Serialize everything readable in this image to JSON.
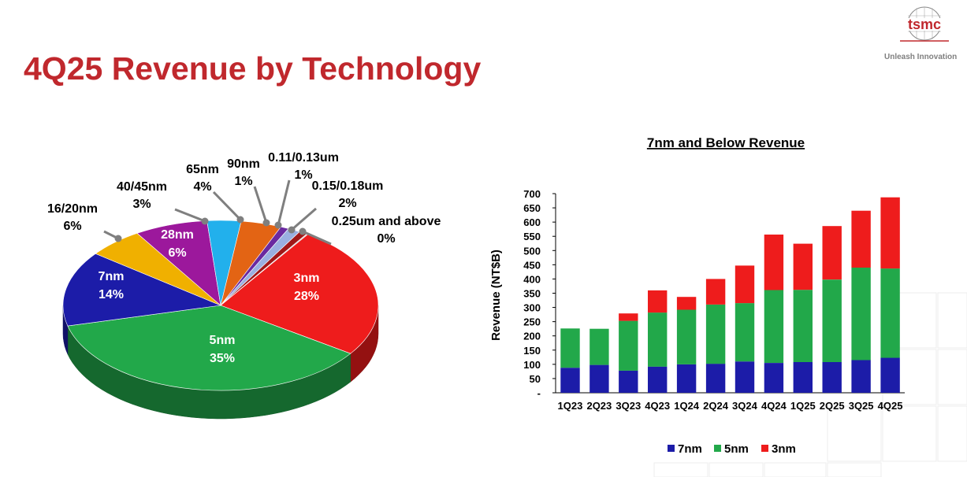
{
  "page": {
    "title": "4Q25 Revenue by Technology",
    "logo_text": "tsmc",
    "tagline": "Unleash Innovation",
    "accent_color": "#c0282d"
  },
  "chart_data": [
    {
      "type": "pie",
      "title": "",
      "slices": [
        {
          "label": "3nm",
          "value": 28,
          "display": "28%",
          "color": "#ee1c1c"
        },
        {
          "label": "5nm",
          "value": 35,
          "display": "35%",
          "color": "#22a84a"
        },
        {
          "label": "7nm",
          "value": 14,
          "display": "14%",
          "color": "#1c1ca8"
        },
        {
          "label": "16/20nm",
          "value": 6,
          "display": "6%",
          "color": "#f0b000"
        },
        {
          "label": "28nm",
          "value": 6,
          "display": "6%",
          "color": "#9c189c"
        },
        {
          "label": "40/45nm",
          "value": 3,
          "display": "3%",
          "color": "#22b0ec"
        },
        {
          "label": "65nm",
          "value": 4,
          "display": "4%",
          "color": "#e36414"
        },
        {
          "label": "90nm",
          "value": 1,
          "display": "1%",
          "color": "#6a2aa0"
        },
        {
          "label": "0.11/0.13um",
          "value": 1,
          "display": "1%",
          "color": "#9ab0e0"
        },
        {
          "label": "0.15/0.18um",
          "value": 2,
          "display": "2%",
          "color": "#a01818"
        },
        {
          "label": "0.25um and above",
          "value": 0,
          "display": "0%",
          "color": "#d0d0d0"
        }
      ]
    },
    {
      "type": "bar",
      "stacked": true,
      "title": "7nm and Below Revenue",
      "xlabel": "",
      "ylabel": "Revenue (NT$B)",
      "ylim": [
        0,
        700
      ],
      "yticks": [
        0,
        50,
        100,
        150,
        200,
        250,
        300,
        350,
        400,
        450,
        500,
        550,
        600,
        650,
        700
      ],
      "ytick_labels": [
        "-",
        "50",
        "100",
        "150",
        "200",
        "250",
        "300",
        "350",
        "400",
        "450",
        "500",
        "550",
        "600",
        "650",
        "700"
      ],
      "categories": [
        "1Q23",
        "2Q23",
        "3Q23",
        "4Q23",
        "1Q24",
        "2Q24",
        "3Q24",
        "4Q24",
        "1Q25",
        "2Q25",
        "3Q25",
        "4Q25"
      ],
      "series": [
        {
          "name": "7nm",
          "color": "#1c1ca8",
          "values": [
            88,
            98,
            78,
            92,
            100,
            102,
            110,
            105,
            108,
            108,
            115,
            123
          ]
        },
        {
          "name": "5nm",
          "color": "#22a84a",
          "values": [
            138,
            127,
            175,
            190,
            192,
            208,
            205,
            256,
            254,
            290,
            325,
            314
          ]
        },
        {
          "name": "3nm",
          "color": "#ee1c1c",
          "values": [
            0,
            0,
            26,
            78,
            45,
            90,
            132,
            195,
            162,
            188,
            200,
            250
          ]
        }
      ],
      "legend_position": "bottom",
      "grid": false
    }
  ]
}
